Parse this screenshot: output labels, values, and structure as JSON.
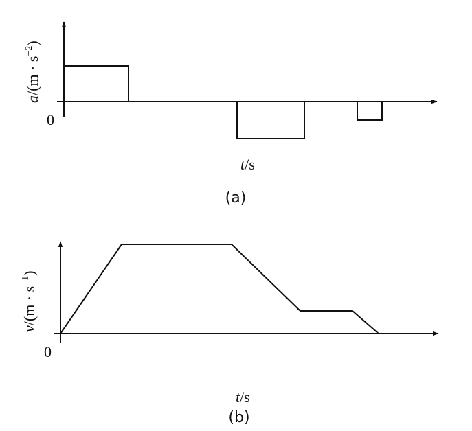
{
  "figures": [
    {
      "id": "a",
      "caption": "(a)",
      "y_label_var": "a",
      "y_label_unit": "/(m · s",
      "y_label_exp": "−2",
      "y_label_close": ")",
      "x_label_var": "t",
      "x_label_unit": "/s",
      "origin": "0",
      "shape": "piecewise-constant acceleration: positive, zero, negative, zero, small negative"
    },
    {
      "id": "b",
      "caption": "(b)",
      "y_label_var": "v",
      "y_label_unit": "/(m · s",
      "y_label_exp": "−1",
      "y_label_close": ")",
      "x_label_var": "t",
      "x_label_unit": "/s",
      "origin": "0",
      "shape": "velocity rises linearly, constant, decreases, constant, decreases to zero"
    }
  ],
  "colors": {
    "line": "#111111",
    "background": "#ffffff"
  }
}
